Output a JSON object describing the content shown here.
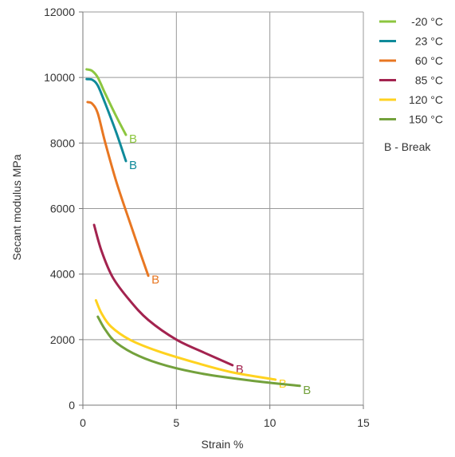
{
  "chart_data": {
    "type": "line",
    "title": "",
    "xlabel": "Strain  %",
    "ylabel": "Secant modulus  MPa",
    "xlim": [
      0,
      15
    ],
    "ylim": [
      0,
      12000
    ],
    "x_ticks": [
      "0",
      "5",
      "10",
      "15"
    ],
    "y_ticks": [
      "0",
      "2000",
      "4000",
      "6000",
      "8000",
      "10000",
      "12000"
    ],
    "grid": true,
    "legend_position": "right",
    "legend_note": "B - Break",
    "series": [
      {
        "name": "-20 °C",
        "color": "#8cc63f",
        "end_label": "B",
        "points": [
          [
            0.2,
            10250
          ],
          [
            0.5,
            10200
          ],
          [
            0.8,
            10000
          ],
          [
            1.2,
            9500
          ],
          [
            1.8,
            8800
          ],
          [
            2.3,
            8250
          ]
        ]
      },
      {
        "name": "23 °C",
        "color": "#0f8a9a",
        "end_label": "B",
        "points": [
          [
            0.2,
            9950
          ],
          [
            0.5,
            9930
          ],
          [
            0.8,
            9750
          ],
          [
            1.2,
            9200
          ],
          [
            1.8,
            8300
          ],
          [
            2.3,
            7450
          ]
        ]
      },
      {
        "name": "60 °C",
        "color": "#e87722",
        "end_label": "B",
        "points": [
          [
            0.25,
            9250
          ],
          [
            0.5,
            9200
          ],
          [
            0.8,
            8900
          ],
          [
            1.2,
            8000
          ],
          [
            1.8,
            6800
          ],
          [
            2.5,
            5600
          ],
          [
            3.1,
            4600
          ],
          [
            3.5,
            3950
          ]
        ]
      },
      {
        "name": "85 °C",
        "color": "#a3234f",
        "end_label": "B",
        "points": [
          [
            0.6,
            5500
          ],
          [
            1.0,
            4700
          ],
          [
            1.6,
            3900
          ],
          [
            2.5,
            3200
          ],
          [
            3.5,
            2600
          ],
          [
            5.0,
            2000
          ],
          [
            6.5,
            1600
          ],
          [
            8.0,
            1220
          ]
        ]
      },
      {
        "name": "120 °C",
        "color": "#ffd21f",
        "end_label": "B",
        "points": [
          [
            0.7,
            3200
          ],
          [
            1.0,
            2800
          ],
          [
            1.5,
            2400
          ],
          [
            2.5,
            2000
          ],
          [
            4.0,
            1650
          ],
          [
            6.0,
            1300
          ],
          [
            8.0,
            1000
          ],
          [
            10.3,
            780
          ]
        ]
      },
      {
        "name": "150 °C",
        "color": "#73a13c",
        "end_label": "B",
        "points": [
          [
            0.8,
            2700
          ],
          [
            1.2,
            2300
          ],
          [
            1.8,
            1900
          ],
          [
            3.0,
            1500
          ],
          [
            4.5,
            1200
          ],
          [
            6.5,
            950
          ],
          [
            9.0,
            750
          ],
          [
            11.6,
            590
          ]
        ]
      }
    ]
  }
}
